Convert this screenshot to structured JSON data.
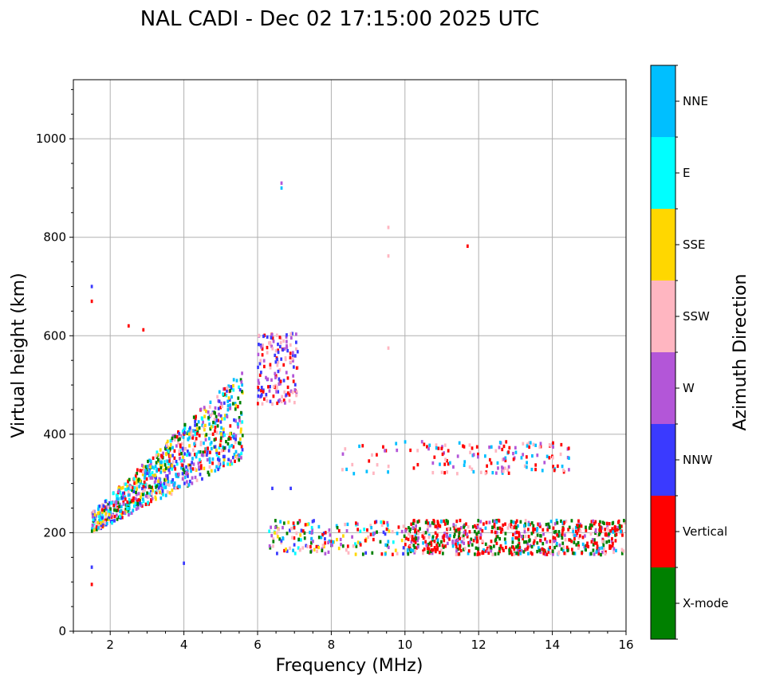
{
  "chart_data": {
    "type": "scatter",
    "title": "NAL CADI - Dec 02 17:15:00 2025 UTC",
    "xlabel": "Frequency (MHz)",
    "ylabel": "Virtual height (km)",
    "xlim": [
      1,
      16
    ],
    "ylim": [
      0,
      1120
    ],
    "xticks": [
      2,
      4,
      6,
      8,
      10,
      12,
      14,
      16
    ],
    "yticks": [
      0,
      200,
      400,
      600,
      800,
      1000
    ],
    "grid": true,
    "colorbar": {
      "label": "Azimuth Direction",
      "categories": [
        {
          "name": "X-mode",
          "color": "#008000"
        },
        {
          "name": "Vertical",
          "color": "#ff0000"
        },
        {
          "name": "NNW",
          "color": "#3a3aff"
        },
        {
          "name": "W",
          "color": "#b356d8"
        },
        {
          "name": "SSW",
          "color": "#ffb6c1"
        },
        {
          "name": "SSE",
          "color": "#ffd700"
        },
        {
          "name": "E",
          "color": "#00ffff"
        },
        {
          "name": "NNE",
          "color": "#00bfff"
        }
      ]
    },
    "clusters": [
      {
        "region": "F-layer low-frequency trace",
        "freq_range": [
          1.5,
          5.6
        ],
        "height_range": [
          220,
          500
        ],
        "directions": [
          "NNE",
          "E",
          "Vertical",
          "X-mode",
          "NNW",
          "W",
          "SSW",
          "SSE"
        ]
      },
      {
        "region": "High-frequency F trace",
        "freq_range": [
          8.3,
          14.5
        ],
        "height_range": [
          320,
          385
        ],
        "directions": [
          "NNE",
          "Vertical",
          "W",
          "SSW"
        ]
      },
      {
        "region": "Low E/Es trace",
        "freq_range": [
          6.3,
          16
        ],
        "height_range": [
          155,
          225
        ],
        "directions": [
          "X-mode",
          "Vertical",
          "NNW",
          "W",
          "SSW",
          "NNE",
          "E",
          "SSE"
        ]
      },
      {
        "region": "Cluster near 6.5 MHz",
        "freq_range": [
          6.0,
          7.1
        ],
        "height_range": [
          460,
          605
        ],
        "directions": [
          "W",
          "NNW",
          "Vertical",
          "SSW"
        ]
      }
    ],
    "points": [
      {
        "f": 1.5,
        "h": 700,
        "dir": "NNW"
      },
      {
        "f": 1.5,
        "h": 670,
        "dir": "Vertical"
      },
      {
        "f": 6.65,
        "h": 910,
        "dir": "W"
      },
      {
        "f": 6.65,
        "h": 900,
        "dir": "NNE"
      },
      {
        "f": 9.55,
        "h": 820,
        "dir": "SSW"
      },
      {
        "f": 9.55,
        "h": 762,
        "dir": "SSW"
      },
      {
        "f": 11.7,
        "h": 782,
        "dir": "Vertical"
      },
      {
        "f": 9.55,
        "h": 575,
        "dir": "SSW"
      },
      {
        "f": 2.5,
        "h": 620,
        "dir": "Vertical"
      },
      {
        "f": 2.9,
        "h": 612,
        "dir": "Vertical"
      },
      {
        "f": 1.5,
        "h": 95,
        "dir": "Vertical"
      },
      {
        "f": 1.5,
        "h": 130,
        "dir": "NNW"
      },
      {
        "f": 4.0,
        "h": 138,
        "dir": "NNW"
      },
      {
        "f": 6.4,
        "h": 290,
        "dir": "NNW"
      },
      {
        "f": 6.9,
        "h": 290,
        "dir": "NNW"
      }
    ]
  }
}
